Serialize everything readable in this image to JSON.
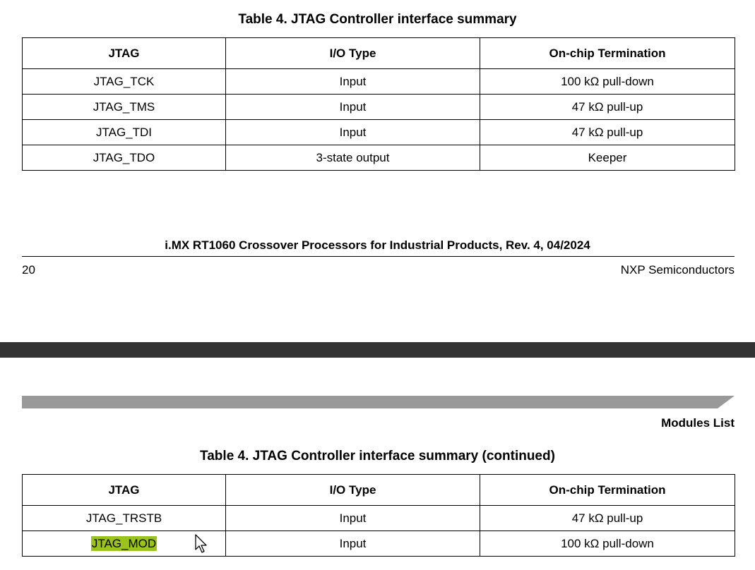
{
  "table1": {
    "caption": "Table 4. JTAG Controller interface summary",
    "headers": [
      "JTAG",
      "I/O Type",
      "On-chip Termination"
    ],
    "rows": [
      [
        "JTAG_TCK",
        "Input",
        "100 kΩ pull-down"
      ],
      [
        "JTAG_TMS",
        "Input",
        "47 kΩ pull-up"
      ],
      [
        "JTAG_TDI",
        "Input",
        "47 kΩ pull-up"
      ],
      [
        "JTAG_TDO",
        "3-state output",
        "Keeper"
      ]
    ]
  },
  "footer": {
    "title": "i.MX RT1060 Crossover Processors for Industrial Products, Rev. 4, 04/2024",
    "page_number": "20",
    "company": "NXP Semiconductors"
  },
  "next_page": {
    "section_label": "Modules List"
  },
  "table2": {
    "caption": "Table 4. JTAG Controller interface summary (continued)",
    "headers": [
      "JTAG",
      "I/O Type",
      "On-chip Termination"
    ],
    "rows": [
      [
        "JTAG_TRSTB",
        "Input",
        "47 kΩ pull-up"
      ],
      [
        "JTAG_MOD",
        "Input",
        "100 kΩ pull-down"
      ]
    ]
  },
  "colors": {
    "page_gap": "#333333",
    "section_bar": "#999999",
    "highlight": "#9ac31c"
  },
  "highlighted_cell": "table2.rows.1.0",
  "icons": {
    "cursor": "arrow-cursor-icon"
  }
}
